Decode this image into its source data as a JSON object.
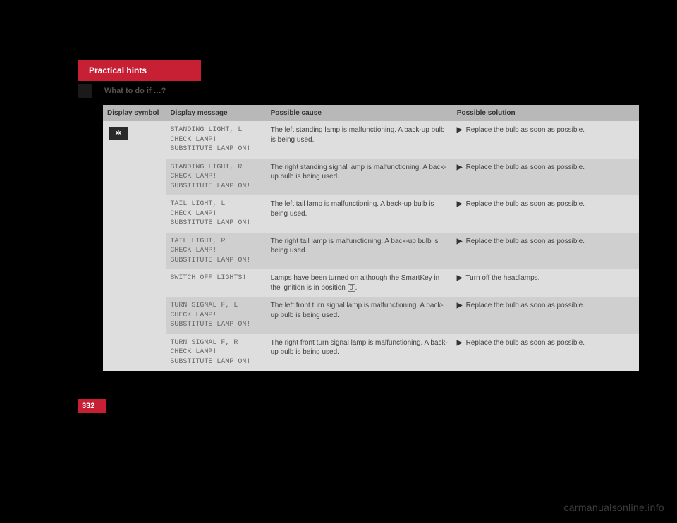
{
  "header": {
    "tab": "Practical hints",
    "subheader": "What to do if …?"
  },
  "page_number": "332",
  "watermark": "carmanualsonline.info",
  "table": {
    "columns": [
      "Display symbol",
      "Display message",
      "Possible cause",
      "Possible solution"
    ],
    "icon_glyph": "✲",
    "rows": [
      {
        "message": "STANDING LIGHT, L\nCHECK LAMP!\nSUBSTITUTE LAMP ON!",
        "cause": "The left standing lamp is malfunctioning. A back-up bulb is being used.",
        "solution": "Replace the bulb as soon as possible."
      },
      {
        "message": "STANDING LIGHT, R\nCHECK LAMP!\nSUBSTITUTE LAMP ON!",
        "cause": "The right standing signal lamp is malfunctioning. A back-up bulb is being used.",
        "solution": "Replace the bulb as soon as possible."
      },
      {
        "message": "TAIL LIGHT, L\nCHECK LAMP!\nSUBSTITUTE LAMP ON!",
        "cause": "The left tail lamp is malfunctioning. A back-up bulb is being used.",
        "solution": "Replace the bulb as soon as possible."
      },
      {
        "message": "TAIL LIGHT, R\nCHECK LAMP!\nSUBSTITUTE LAMP ON!",
        "cause": "The right tail lamp is malfunctioning. A back-up bulb is being used.",
        "solution": "Replace the bulb as soon as possible."
      },
      {
        "message": "SWITCH OFF LIGHTS!",
        "cause_prefix": "Lamps have been turned on although the SmartKey in the ignition is in position ",
        "cause_key": "0",
        "cause_suffix": ".",
        "solution": "Turn off the headlamps."
      },
      {
        "message": "TURN SIGNAL F, L\nCHECK LAMP!\nSUBSTITUTE LAMP ON!",
        "cause": "The left front turn signal lamp is malfunctioning. A back-up bulb is being used.",
        "solution": "Replace the bulb as soon as possible."
      },
      {
        "message": "TURN SIGNAL F, R\nCHECK LAMP!\nSUBSTITUTE LAMP ON!",
        "cause": "The right front turn signal lamp is malfunctioning. A back-up bulb is being used.",
        "solution": "Replace the bulb as soon as possible."
      }
    ]
  }
}
